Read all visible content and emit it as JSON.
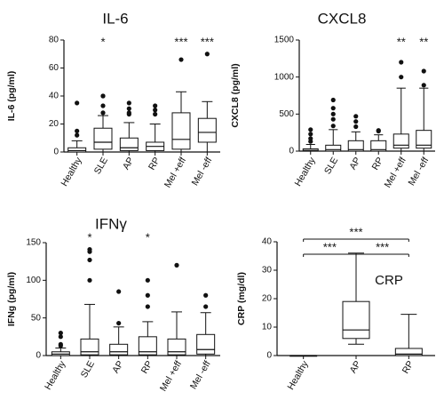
{
  "chart_data": [
    {
      "type": "box",
      "title": "IL-6",
      "ylabel": "IL-6 (pg/ml)",
      "ylim": [
        0,
        80
      ],
      "yticks": [
        0,
        20,
        40,
        60,
        80
      ],
      "categories": [
        "Healthy",
        "SLE",
        "AP",
        "RP",
        "Mel +eff",
        "Mel -eff"
      ],
      "boxes": [
        {
          "whisker_low": 0,
          "q1": 0,
          "median": 1,
          "q3": 3,
          "whisker_high": 8,
          "outliers": [
            12,
            15,
            35
          ]
        },
        {
          "whisker_low": 0,
          "q1": 2,
          "median": 7,
          "q3": 17,
          "whisker_high": 26,
          "outliers": [
            28,
            33,
            40,
            40
          ]
        },
        {
          "whisker_low": 0,
          "q1": 1,
          "median": 3,
          "q3": 10,
          "whisker_high": 21,
          "outliers": [
            27,
            28,
            31,
            35
          ]
        },
        {
          "whisker_low": 0,
          "q1": 1,
          "median": 4,
          "q3": 7,
          "whisker_high": 20,
          "outliers": [
            27,
            30,
            33
          ]
        },
        {
          "whisker_low": 0,
          "q1": 2,
          "median": 9,
          "q3": 28,
          "whisker_high": 43,
          "outliers": [
            66
          ]
        },
        {
          "whisker_low": 0,
          "q1": 7,
          "median": 14,
          "q3": 24,
          "whisker_high": 36,
          "outliers": [
            70
          ]
        }
      ],
      "significance": [
        "",
        "*",
        "",
        "",
        "***",
        "***"
      ],
      "inner_label": ""
    },
    {
      "type": "box",
      "title": "CXCL8",
      "ylabel": "CXCL8 (pg/ml)",
      "ylim": [
        0,
        1500
      ],
      "yticks": [
        0,
        500,
        1000,
        1500
      ],
      "categories": [
        "Healthy",
        "SLE",
        "AP",
        "RP",
        "Mel +eff",
        "Mel -eff"
      ],
      "boxes": [
        {
          "whisker_low": 0,
          "q1": 0,
          "median": 10,
          "q3": 30,
          "whisker_high": 90,
          "outliers": [
            130,
            170,
            230,
            290
          ]
        },
        {
          "whisker_low": 0,
          "q1": 0,
          "median": 20,
          "q3": 80,
          "whisker_high": 290,
          "outliers": [
            340,
            430,
            500,
            580,
            690
          ]
        },
        {
          "whisker_low": 0,
          "q1": 0,
          "median": 20,
          "q3": 140,
          "whisker_high": 260,
          "outliers": [
            330,
            400,
            470
          ]
        },
        {
          "whisker_low": 0,
          "q1": 0,
          "median": 20,
          "q3": 140,
          "whisker_high": 220,
          "outliers": [
            270,
            280
          ]
        },
        {
          "whisker_low": 0,
          "q1": 40,
          "median": 80,
          "q3": 230,
          "whisker_high": 850,
          "outliers": [
            1000,
            1200
          ]
        },
        {
          "whisker_low": 0,
          "q1": 40,
          "median": 80,
          "q3": 280,
          "whisker_high": 850,
          "outliers": [
            890,
            1080
          ]
        }
      ],
      "significance": [
        "",
        "",
        "",
        "",
        "**",
        "**"
      ],
      "inner_label": ""
    },
    {
      "type": "box",
      "title": "IFNγ",
      "ylabel": "IFNg (pg/ml)",
      "ylim": [
        0,
        150
      ],
      "yticks": [
        0,
        50,
        100,
        150
      ],
      "categories": [
        "Healthy",
        "SLE",
        "AP",
        "RP",
        "Mel +eff",
        "Mel -eff"
      ],
      "boxes": [
        {
          "whisker_low": 0,
          "q1": 0,
          "median": 2,
          "q3": 5,
          "whisker_high": 10,
          "outliers": [
            13,
            15,
            25,
            30
          ]
        },
        {
          "whisker_low": 0,
          "q1": 1,
          "median": 5,
          "q3": 22,
          "whisker_high": 68,
          "outliers": [
            100,
            127,
            138,
            141
          ]
        },
        {
          "whisker_low": 0,
          "q1": 1,
          "median": 5,
          "q3": 15,
          "whisker_high": 38,
          "outliers": [
            43,
            85
          ]
        },
        {
          "whisker_low": 0,
          "q1": 1,
          "median": 5,
          "q3": 25,
          "whisker_high": 45,
          "outliers": [
            65,
            80,
            100
          ]
        },
        {
          "whisker_low": 0,
          "q1": 1,
          "median": 5,
          "q3": 22,
          "whisker_high": 58,
          "outliers": [
            120
          ]
        },
        {
          "whisker_low": 0,
          "q1": 2,
          "median": 8,
          "q3": 28,
          "whisker_high": 57,
          "outliers": [
            65,
            80
          ]
        }
      ],
      "significance": [
        "",
        "*",
        "",
        "*",
        "",
        ""
      ],
      "inner_label": ""
    },
    {
      "type": "box",
      "title": "",
      "ylabel": "CRP (mg/dl)",
      "ylim": [
        0,
        40
      ],
      "yticks": [
        0,
        10,
        20,
        30,
        40
      ],
      "categories": [
        "Healthy",
        "AP",
        "RP"
      ],
      "boxes": [
        {
          "whisker_low": 0,
          "q1": 0,
          "median": 0,
          "q3": 0,
          "whisker_high": 0,
          "outliers": []
        },
        {
          "whisker_low": 4,
          "q1": 6,
          "median": 9,
          "q3": 19,
          "whisker_high": 36,
          "outliers": []
        },
        {
          "whisker_low": 0,
          "q1": 0,
          "median": 0.5,
          "q3": 2.5,
          "whisker_high": 14.5,
          "outliers": []
        }
      ],
      "significance": [
        "",
        "",
        ""
      ],
      "inner_label": "CRP",
      "brackets": [
        {
          "from": 0,
          "to": 1,
          "label": "***",
          "level": 0
        },
        {
          "from": 1,
          "to": 2,
          "label": "***",
          "level": 0
        },
        {
          "from": 0,
          "to": 2,
          "label": "***",
          "level": 1
        }
      ]
    }
  ]
}
